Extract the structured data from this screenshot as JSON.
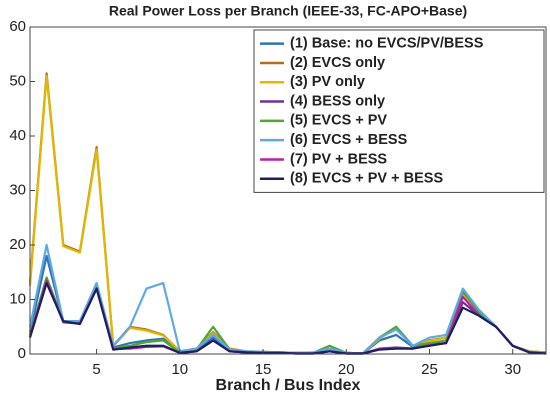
{
  "chart_data": {
    "type": "line",
    "title": "Real Power Loss per Branch (IEEE-33, FC-APO+Base)",
    "x_label": "Branch / Bus Index",
    "x": [
      1,
      2,
      3,
      4,
      5,
      6,
      7,
      8,
      9,
      10,
      11,
      12,
      13,
      14,
      15,
      16,
      17,
      18,
      19,
      20,
      21,
      22,
      23,
      24,
      25,
      26,
      27,
      28,
      29,
      30,
      31,
      32
    ],
    "xlim": [
      1,
      32
    ],
    "ylim": [
      0,
      60
    ],
    "xticks": [
      5,
      10,
      15,
      20,
      25,
      30
    ],
    "yticks": [
      0,
      10,
      20,
      30,
      40,
      50,
      60
    ],
    "grid": false,
    "legend": "upper right",
    "series": [
      {
        "name": "(1) Base: no EVCS/PV/BESS",
        "color": "#2e75b6",
        "values": [
          4,
          18,
          6,
          6,
          12.5,
          1.2,
          2,
          2.5,
          2.8,
          0.3,
          0.8,
          3,
          0.6,
          0.4,
          0.3,
          0.3,
          0.2,
          0.2,
          1,
          0.2,
          0.1,
          2.5,
          3.5,
          1.3,
          2.5,
          3,
          11,
          7.5,
          5,
          1.5,
          0.4,
          0.2
        ]
      },
      {
        "name": "(2) EVCS only",
        "color": "#b06e20",
        "values": [
          13,
          51.5,
          20,
          18.8,
          38,
          1.5,
          5,
          4.5,
          3.5,
          0.5,
          1,
          4,
          1,
          0.5,
          0.4,
          0.3,
          0.2,
          0.2,
          1,
          0.1,
          0.1,
          3,
          5,
          1.5,
          2.5,
          3,
          11,
          8,
          5,
          1.5,
          0.5,
          0.3
        ]
      },
      {
        "name": "(3) PV only",
        "color": "#e3b600",
        "values": [
          12.5,
          51,
          19.8,
          18.6,
          37.5,
          1.4,
          4.8,
          4.3,
          3.4,
          0.5,
          1,
          3.8,
          0.9,
          0.5,
          0.4,
          0.3,
          0.2,
          0.2,
          1,
          0.1,
          0.1,
          2.8,
          4.8,
          1.5,
          2.4,
          3,
          10.8,
          7.8,
          5,
          1.5,
          0.5,
          0.3
        ]
      },
      {
        "name": "(4) BESS only",
        "color": "#7030a0",
        "values": [
          3.5,
          14,
          6,
          6,
          12.5,
          1,
          1.2,
          1.5,
          1.5,
          0.2,
          0.5,
          2.5,
          0.5,
          0.3,
          0.2,
          0.2,
          0.1,
          0.1,
          0.5,
          0.1,
          0.1,
          1,
          1.2,
          1,
          1.8,
          2,
          9.5,
          7,
          5,
          1.5,
          0.3,
          0.1
        ]
      },
      {
        "name": "(5) EVCS + PV",
        "color": "#4ea72e",
        "values": [
          3.5,
          14,
          6,
          6,
          13,
          1,
          1.5,
          2.2,
          2.5,
          0.3,
          0.8,
          5,
          0.8,
          0.4,
          0.3,
          0.3,
          0.2,
          0.2,
          1.5,
          0.2,
          0.1,
          3,
          5,
          1.5,
          2,
          2.5,
          11.5,
          7.5,
          5,
          1.5,
          0.4,
          0.2
        ]
      },
      {
        "name": "(6) EVCS + BESS",
        "color": "#5fa8e8",
        "values": [
          5,
          20,
          6,
          6,
          13,
          1.5,
          5,
          12,
          13,
          0.5,
          1,
          3.5,
          0.8,
          0.5,
          0.4,
          0.3,
          0.2,
          0.3,
          1,
          0.2,
          0.1,
          3,
          4.5,
          1.5,
          3,
          3.5,
          12,
          8,
          5,
          1.5,
          0.4,
          0.3
        ]
      },
      {
        "name": "(7) PV + BESS",
        "color": "#c0209a",
        "values": [
          3.2,
          13.5,
          5.8,
          5.6,
          12,
          0.9,
          1,
          1.3,
          1.4,
          0.2,
          0.5,
          2.5,
          0.5,
          0.3,
          0.2,
          0.2,
          0.1,
          0.1,
          0.5,
          0.1,
          0.1,
          0.9,
          1.1,
          1,
          1.6,
          2,
          10.5,
          7,
          5,
          1.5,
          0.3,
          0.1
        ]
      },
      {
        "name": "(8) EVCS + PV + BESS",
        "color": "#1a2060",
        "values": [
          3,
          13,
          6,
          5.5,
          12,
          0.8,
          1.2,
          1.5,
          1.5,
          0.2,
          0.5,
          2.5,
          0.5,
          0.3,
          0.2,
          0.2,
          0.1,
          0.1,
          0.5,
          0.1,
          0.1,
          0.8,
          1,
          1,
          1.5,
          2,
          8.5,
          7,
          5,
          1.5,
          0.3,
          0.1
        ]
      }
    ]
  }
}
